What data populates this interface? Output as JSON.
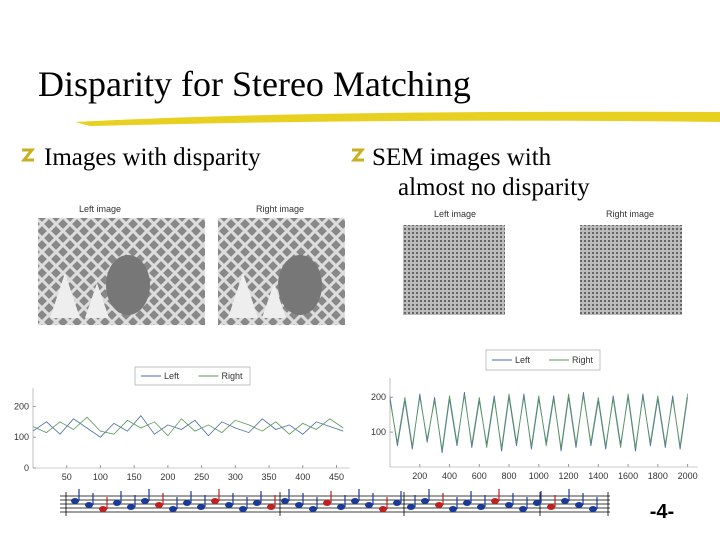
{
  "title": "Disparity for Stereo Matching",
  "bullets": [
    [
      "Images with disparity"
    ],
    [
      "SEM images with",
      "almost no disparity"
    ]
  ],
  "image_labels": [
    [
      "Left image",
      "Right image"
    ],
    [
      "Left image",
      "Right image"
    ]
  ],
  "page_number": "-4-",
  "chart_data": [
    {
      "type": "line",
      "xlim": [
        0,
        470
      ],
      "ylim": [
        0,
        260
      ],
      "xticks": [
        50,
        100,
        150,
        200,
        250,
        300,
        350,
        400,
        450
      ],
      "yticks": [
        0,
        100,
        200
      ],
      "x": [
        0,
        20,
        40,
        60,
        80,
        100,
        120,
        140,
        160,
        180,
        200,
        220,
        240,
        260,
        280,
        300,
        320,
        340,
        360,
        380,
        400,
        420,
        440,
        460
      ],
      "series": [
        {
          "name": "Left",
          "color": "#4a6fa5",
          "values": [
            120,
            150,
            110,
            160,
            130,
            100,
            145,
            120,
            170,
            110,
            140,
            125,
            155,
            105,
            150,
            130,
            115,
            160,
            125,
            140,
            110,
            150,
            135,
            120
          ]
        },
        {
          "name": "Right",
          "color": "#5a9a5a",
          "values": [
            135,
            115,
            150,
            125,
            165,
            120,
            110,
            155,
            130,
            150,
            105,
            160,
            120,
            140,
            115,
            155,
            140,
            120,
            150,
            110,
            145,
            125,
            160,
            130
          ]
        }
      ]
    },
    {
      "type": "line",
      "xlim": [
        0,
        2070
      ],
      "ylim": [
        0,
        255
      ],
      "xticks": [
        200,
        400,
        600,
        800,
        1000,
        1200,
        1400,
        1600,
        1800,
        2000
      ],
      "yticks": [
        100,
        200
      ],
      "x": [
        0,
        50,
        100,
        150,
        200,
        250,
        300,
        350,
        400,
        450,
        500,
        550,
        600,
        650,
        700,
        750,
        800,
        850,
        900,
        950,
        1000,
        1050,
        1100,
        1150,
        1200,
        1250,
        1300,
        1350,
        1400,
        1450,
        1500,
        1550,
        1600,
        1650,
        1700,
        1750,
        1800,
        1850,
        1900,
        1950,
        2000
      ],
      "series": [
        {
          "name": "Left",
          "color": "#4a6fa5",
          "values": [
            200,
            60,
            190,
            50,
            210,
            70,
            200,
            40,
            195,
            60,
            215,
            55,
            190,
            65,
            205,
            45,
            200,
            60,
            210,
            50,
            195,
            70,
            205,
            45,
            200,
            55,
            215,
            60,
            190,
            50,
            205,
            65,
            200,
            45,
            210,
            60,
            195,
            55,
            205,
            50,
            200
          ]
        },
        {
          "name": "Right",
          "color": "#5a9a5a",
          "values": [
            190,
            70,
            200,
            60,
            200,
            80,
            190,
            50,
            205,
            70,
            205,
            65,
            200,
            55,
            195,
            55,
            210,
            70,
            200,
            60,
            205,
            60,
            195,
            55,
            210,
            65,
            205,
            70,
            200,
            60,
            195,
            55,
            210,
            55,
            200,
            70,
            205,
            65,
            195,
            60,
            210
          ]
        }
      ]
    }
  ]
}
